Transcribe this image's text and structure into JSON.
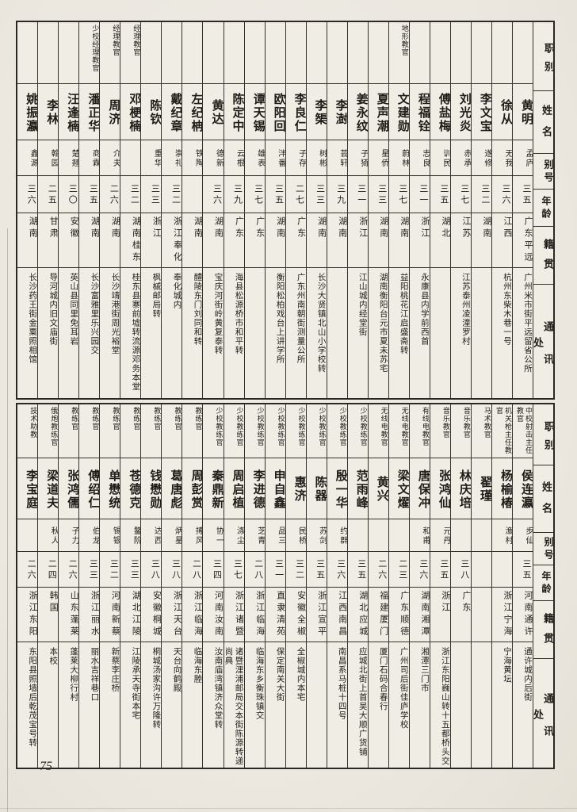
{
  "page": {
    "number": "75"
  },
  "headers": {
    "zhibie": "职别",
    "name": "姓名",
    "hao": "别号",
    "age": "年龄",
    "origin": "籍贯",
    "address": "通讯处"
  },
  "top_table": {
    "entries": [
      {
        "zhibie": "",
        "name": "黄明",
        "hao": "孟庐",
        "age": "三五",
        "origin": "广东平远",
        "address": "广州米市街平远留省公所"
      },
      {
        "zhibie": "",
        "name": "徐从",
        "hao": "无我",
        "age": "三六",
        "origin": "江西",
        "address": "杭州东柴木巷一号"
      },
      {
        "zhibie": "",
        "name": "李文宝",
        "hao": "遂修",
        "age": "三二",
        "origin": "湖南",
        "address": ""
      },
      {
        "zhibie": "",
        "name": "刘光炎",
        "hao": "赤承",
        "age": "三七",
        "origin": "江苏",
        "address": "江苏泰州凌潼罗村"
      },
      {
        "zhibie": "",
        "name": "傅盐梅",
        "hao": "训民",
        "age": "三五",
        "origin": "湖北",
        "address": ""
      },
      {
        "zhibie": "",
        "name": "程福铨",
        "hao": "志良",
        "age": "三一",
        "origin": "浙江",
        "address": "永康县内学前西首"
      },
      {
        "zhibie": "地形教官",
        "name": "文建勋",
        "hao": "蔚林",
        "age": "三七",
        "origin": "湖南",
        "address": "益阳桃花江启盛斋转"
      },
      {
        "zhibie": "",
        "name": "夏声潮",
        "hao": "星侨",
        "age": "三三",
        "origin": "湖南",
        "address": "湖南衡阳台元市夏未苏宅"
      },
      {
        "zhibie": "",
        "name": "姜永纹",
        "hao": "子猗",
        "age": "三一",
        "origin": "浙江",
        "address": "江山城内经堂街"
      },
      {
        "zhibie": "",
        "name": "李澍",
        "hao": "芸轩",
        "age": "三九",
        "origin": "湖南",
        "address": ""
      },
      {
        "zhibie": "",
        "name": "李榘",
        "hao": "树彬",
        "age": "三三",
        "origin": "湖南",
        "address": "长沙大贤镇北山小学校转"
      },
      {
        "zhibie": "",
        "name": "李良仁",
        "hao": "子存",
        "age": "二七",
        "origin": "广东",
        "address": "广东州南朝街测量公所"
      },
      {
        "zhibie": "",
        "name": "欧阳回",
        "hao": "泮番",
        "age": "三五",
        "origin": "湖南",
        "address": "衡阳松柏戏台上讲学所"
      },
      {
        "zhibie": "",
        "name": "谭天锡",
        "hao": "雄表",
        "age": "三七",
        "origin": "广东",
        "address": ""
      },
      {
        "zhibie": "",
        "name": "陈定中",
        "hao": "云根",
        "age": "三九",
        "origin": "广东",
        "address": "海县松源桥市和平转"
      },
      {
        "zhibie": "",
        "name": "黄达",
        "hao": "德新",
        "age": "三六",
        "origin": "湖南",
        "address": "宝庆河街岭黄复泰转"
      },
      {
        "zhibie": "",
        "name": "左纪柟",
        "hao": "铁陶",
        "age": "",
        "origin": "湖南",
        "address": "醴陵东门刘同和转"
      },
      {
        "zhibie": "",
        "name": "戴纪章",
        "hao": "崇礼",
        "age": "三二",
        "origin": "浙江奉化",
        "address": "奉化城内"
      },
      {
        "zhibie": "",
        "name": "陈钦",
        "hao": "重华",
        "age": "三三",
        "origin": "浙江",
        "address": "枫槭邮局转"
      },
      {
        "zhibie": "经理教官",
        "name": "邓梗楠",
        "hao": "",
        "age": "三二",
        "origin": "湖南桂东",
        "address": "桂东县寨前墟转流源邓务本堂"
      },
      {
        "zhibie": "经理教官",
        "name": "周济",
        "hao": "介夫",
        "age": "二六",
        "origin": "湖南",
        "address": "长沙靖港街周光裕堂"
      },
      {
        "zhibie": "少校经理教官",
        "name": "潘正华",
        "hao": "商霖",
        "age": "三五",
        "origin": "湖南",
        "address": "长沙富雅里乐兴园交"
      },
      {
        "zhibie": "",
        "name": "汪逢楠",
        "hao": "楚翘",
        "age": "三〇",
        "origin": "安徽",
        "address": "英山县同里免耳岩"
      },
      {
        "zhibie": "",
        "name": "李林",
        "hao": "翰园",
        "age": "二五",
        "origin": "甘肃",
        "address": "导河城内旧文庙街"
      },
      {
        "zhibie": "",
        "name": "姚振瀛",
        "hao": "鑫源",
        "age": "三六",
        "origin": "湖南",
        "address": "长沙药王街金粟照相馆"
      }
    ]
  },
  "bottom_table": {
    "entries": [
      {
        "zhibie": "中校射击主任教官",
        "name": "侯连瀛",
        "hao": "步仙",
        "age": "三五",
        "origin": "河南通许",
        "address": "通许城内后街"
      },
      {
        "zhibie": "机关枪主任教官",
        "name": "杨榆椿",
        "hao": "渔村",
        "age": "",
        "origin": "浙江宁海",
        "address": "宁海黄坛"
      },
      {
        "zhibie": "马术教官",
        "name": "翟瑾",
        "hao": "",
        "age": "",
        "origin": "",
        "address": ""
      },
      {
        "zhibie": "音乐教官",
        "name": "林庆培",
        "hao": "",
        "age": "三八",
        "origin": "广东",
        "address": ""
      },
      {
        "zhibie": "音乐教官",
        "name": "张鸿仙",
        "hao": "元丹",
        "age": "三五",
        "origin": "浙江",
        "address": "浙江东阳巍山转十五都桥头交"
      },
      {
        "zhibie": "有线电教官",
        "name": "唐保冲",
        "hao": "和甫",
        "age": "三六",
        "origin": "湖南湘潭",
        "address": "湘潭三门市"
      },
      {
        "zhibie": "无线电教官",
        "name": "梁文燿",
        "hao": "",
        "age": "二三",
        "origin": "广东顺德",
        "address": "广州司后街佳庐学校"
      },
      {
        "zhibie": "无线电教官",
        "name": "黄兴",
        "hao": "",
        "age": "二六",
        "origin": "福建厦门",
        "address": "厦门石码合春行"
      },
      {
        "zhibie": "少校教练官",
        "name": "范雨峰",
        "hao": "",
        "age": "三五",
        "origin": "湖北应城",
        "address": "应城北街上首吴大顺广货铺"
      },
      {
        "zhibie": "少校教练官",
        "name": "殷一华",
        "hao": "约群",
        "age": "三六",
        "origin": "江西南昌",
        "address": "南昌系马桩十四号"
      },
      {
        "zhibie": "少校教练官",
        "name": "陈器",
        "hao": "苏剑",
        "age": "三五",
        "origin": "浙江宣平",
        "address": ""
      },
      {
        "zhibie": "少校教练官",
        "name": "惠济",
        "hao": "民桥",
        "age": "三二",
        "origin": "安徽全椒",
        "address": "全椒城内本宅"
      },
      {
        "zhibie": "少校教练官",
        "name": "申自鑫",
        "hao": "品三",
        "age": "三一",
        "origin": "直隶清苑",
        "address": "保定南关大街"
      },
      {
        "zhibie": "少校教练官",
        "name": "李进德",
        "hao": "芝青",
        "age": "二八",
        "origin": "浙江临海",
        "address": "临海东乡衡珠镇交"
      },
      {
        "zhibie": "少校教练官",
        "name": "周启植",
        "hao": "涤尘",
        "age": "三七",
        "origin": "浙江诸暨",
        "address": "诸暨浬浦邮局交本街陈源转递尚典"
      },
      {
        "zhibie": "少校教练官",
        "name": "秦鼎新",
        "hao": "协一",
        "age": "三四",
        "origin": "河南汝南",
        "address": "汝南庙湾镇济众堂转"
      },
      {
        "zhibie": "教练官",
        "name": "周彭赏",
        "hao": "搏风",
        "age": "二八",
        "origin": "浙江临海",
        "address": "临海东塍"
      },
      {
        "zhibie": "教练官",
        "name": "葛唐彪",
        "hao": "炳星",
        "age": "三八",
        "origin": "浙江天台",
        "address": "天台向鹤殿"
      },
      {
        "zhibie": "教练官",
        "name": "钱懋勋",
        "hao": "达西",
        "age": "三八",
        "origin": "安徽桐城",
        "address": "桐城汤家沟许万隆转"
      },
      {
        "zhibie": "教练官",
        "name": "苍德克",
        "hao": "鳌阶",
        "age": "三三",
        "origin": "湖北江陵",
        "address": "江陵承天寺街本宅"
      },
      {
        "zhibie": "教练官",
        "name": "单懋统",
        "hao": "锡银",
        "age": "三二",
        "origin": "河南新蔡",
        "address": "新蔡李庄桥"
      },
      {
        "zhibie": "教练官",
        "name": "傅绍仁",
        "hao": "伯龙",
        "age": "三三",
        "origin": "浙江丽水",
        "address": "丽水吉祥巷口"
      },
      {
        "zhibie": "教练官",
        "name": "张鸿儒",
        "hao": "子力",
        "age": "二六",
        "origin": "山东蓬莱",
        "address": "蓬莱大柳行村"
      },
      {
        "zhibie": "俄炮教练官",
        "name": "梁道夫",
        "hao": "秋人",
        "age": "二四",
        "origin": "韩国",
        "address": "本校"
      },
      {
        "zhibie": "技术助教",
        "name": "李宝庭",
        "hao": "",
        "age": "二六",
        "origin": "浙江东阳",
        "address": "东阳县照墙后乾茂宝号转"
      }
    ]
  }
}
